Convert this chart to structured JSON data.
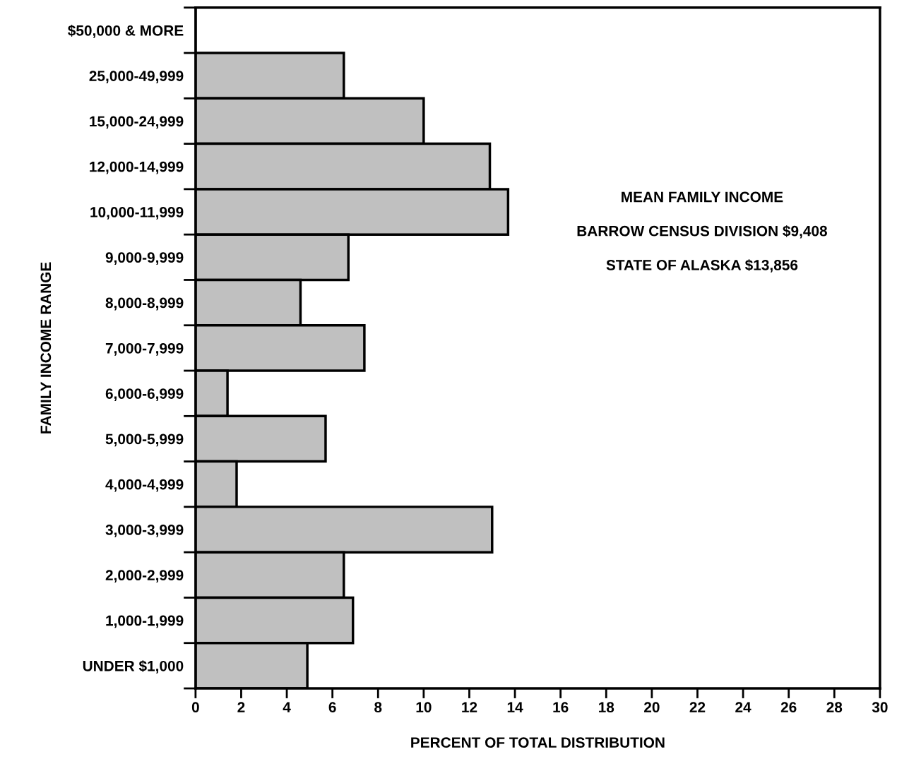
{
  "chart_data": {
    "type": "bar",
    "orientation": "horizontal",
    "xlabel": "PERCENT OF TOTAL DISTRIBUTION",
    "ylabel": "FAMILY INCOME RANGE",
    "categories": [
      "$50,000 & MORE",
      "25,000-49,999",
      "15,000-24,999",
      "12,000-14,999",
      "10,000-11,999",
      "9,000-9,999",
      "8,000-8,999",
      "7,000-7,999",
      "6,000-6,999",
      "5,000-5,999",
      "4,000-4,999",
      "3,000-3,999",
      "2,000-2,999",
      "1,000-1,999",
      "UNDER $1,000"
    ],
    "values": [
      0,
      6.5,
      10,
      12.9,
      13.7,
      6.7,
      4.6,
      7.4,
      1.4,
      5.7,
      1.8,
      13,
      6.5,
      6.9,
      4.9
    ],
    "color": "#c0c0c0",
    "xlim": [
      0,
      30
    ],
    "xticks": [
      0,
      2,
      4,
      6,
      8,
      10,
      12,
      14,
      16,
      18,
      20,
      22,
      24,
      26,
      28,
      30
    ],
    "grid": false,
    "annotations": [
      "MEAN FAMILY INCOME",
      "BARROW CENSUS DIVISION $9,408",
      "STATE OF ALASKA $13,856"
    ]
  }
}
